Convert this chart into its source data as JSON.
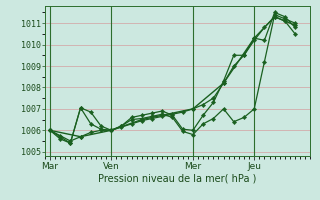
{
  "background_color": "#cce8e0",
  "grid_color_major": "#d4a0a0",
  "grid_color_minor": "#e0b8b8",
  "line_color": "#1a6020",
  "xlabel": "Pression niveau de la mer( hPa )",
  "ylim": [
    1004.8,
    1011.8
  ],
  "yticks": [
    1005,
    1006,
    1007,
    1008,
    1009,
    1010,
    1011
  ],
  "xtick_labels": [
    "Mar",
    "Ven",
    "Mer",
    "Jeu"
  ],
  "xtick_positions": [
    0,
    6,
    14,
    20
  ],
  "xlim": [
    -0.5,
    25.5
  ],
  "lines": [
    {
      "x": [
        0,
        1,
        2,
        3,
        4,
        5,
        6,
        7,
        8,
        9,
        10,
        11,
        12,
        13,
        14,
        15,
        16,
        17,
        18,
        19,
        20,
        21,
        22,
        23,
        24
      ],
      "y": [
        1006.0,
        1005.75,
        1005.5,
        1005.7,
        1005.9,
        1006.0,
        1006.0,
        1006.15,
        1006.3,
        1006.45,
        1006.55,
        1006.65,
        1006.75,
        1006.85,
        1007.0,
        1007.2,
        1007.5,
        1008.2,
        1009.0,
        1009.5,
        1010.2,
        1010.8,
        1011.3,
        1011.1,
        1010.5
      ]
    },
    {
      "x": [
        0,
        1,
        2,
        3,
        4,
        5,
        6,
        7,
        8,
        9,
        10,
        11,
        12,
        13,
        14,
        15,
        16,
        17,
        18,
        19,
        20,
        21,
        22,
        23,
        24
      ],
      "y": [
        1006.0,
        1005.7,
        1005.4,
        1007.05,
        1006.3,
        1006.05,
        1006.0,
        1006.2,
        1006.5,
        1006.55,
        1006.65,
        1006.75,
        1006.6,
        1005.95,
        1005.8,
        1006.3,
        1006.55,
        1007.0,
        1006.4,
        1006.6,
        1007.0,
        1009.2,
        1011.4,
        1011.2,
        1011.0
      ]
    },
    {
      "x": [
        0,
        1,
        2,
        3,
        4,
        5,
        6,
        7,
        8,
        9,
        10,
        11,
        12,
        13,
        14,
        15,
        16,
        17,
        18,
        19,
        20,
        21,
        22,
        23,
        24
      ],
      "y": [
        1006.0,
        1005.6,
        1005.4,
        1007.05,
        1006.85,
        1006.2,
        1006.0,
        1006.2,
        1006.6,
        1006.7,
        1006.8,
        1006.9,
        1006.7,
        1006.05,
        1006.0,
        1006.7,
        1007.3,
        1008.3,
        1009.5,
        1009.5,
        1010.3,
        1010.2,
        1011.5,
        1011.3,
        1010.8
      ]
    },
    {
      "x": [
        0,
        3,
        6,
        9,
        14,
        17,
        20,
        22,
        24
      ],
      "y": [
        1006.0,
        1005.7,
        1006.0,
        1006.5,
        1007.0,
        1008.2,
        1010.3,
        1011.3,
        1010.9
      ]
    }
  ],
  "vlines": [
    0,
    6,
    14,
    20
  ]
}
